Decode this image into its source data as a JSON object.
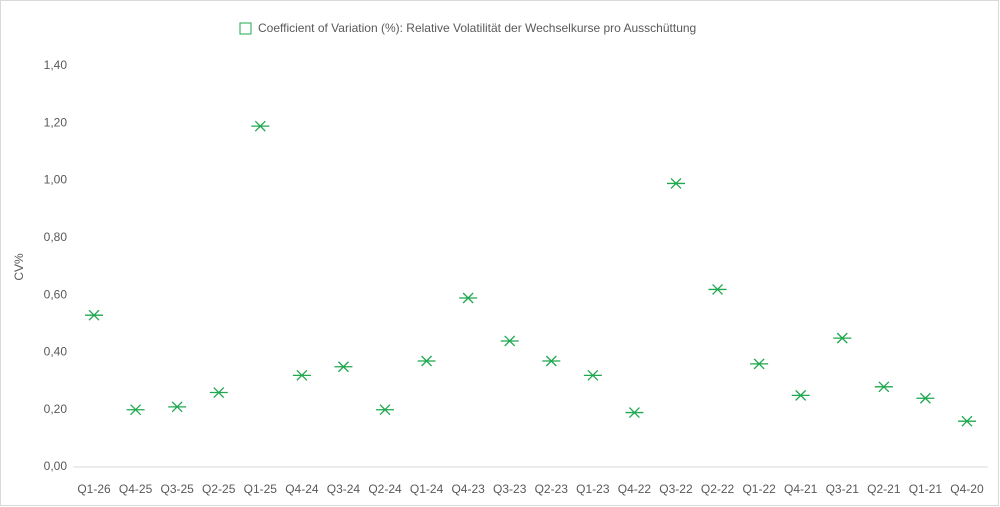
{
  "chart_data": {
    "type": "scatter",
    "legend": "Coefficient of Variation (%): Relative Volatilität der Wechselkurse pro Ausschüttung",
    "y_label": "CV%",
    "categories": [
      "Q1-26",
      "Q4-25",
      "Q3-25",
      "Q2-25",
      "Q1-25",
      "Q4-24",
      "Q3-24",
      "Q2-24",
      "Q1-24",
      "Q4-23",
      "Q3-23",
      "Q2-23",
      "Q1-23",
      "Q4-22",
      "Q3-22",
      "Q2-22",
      "Q1-22",
      "Q4-21",
      "Q3-21",
      "Q2-21",
      "Q1-21",
      "Q4-20"
    ],
    "values": [
      0.53,
      0.2,
      0.21,
      0.26,
      1.19,
      0.32,
      0.35,
      0.2,
      0.37,
      0.59,
      0.44,
      0.37,
      0.32,
      0.19,
      0.99,
      0.62,
      0.36,
      0.25,
      0.45,
      0.28,
      0.24,
      0.16
    ],
    "color": "#1fa84f",
    "ylim": [
      0,
      1.4
    ],
    "yticks": [
      {
        "value": 0,
        "label": "0,00"
      },
      {
        "value": 0.2,
        "label": "0,20"
      },
      {
        "value": 0.4,
        "label": "0,40"
      },
      {
        "value": 0.6,
        "label": "0,60"
      },
      {
        "value": 0.8,
        "label": "0,80"
      },
      {
        "value": 1.0,
        "label": "1,00"
      },
      {
        "value": 1.2,
        "label": "1,20"
      },
      {
        "value": 1.4,
        "label": "1,40"
      }
    ]
  }
}
